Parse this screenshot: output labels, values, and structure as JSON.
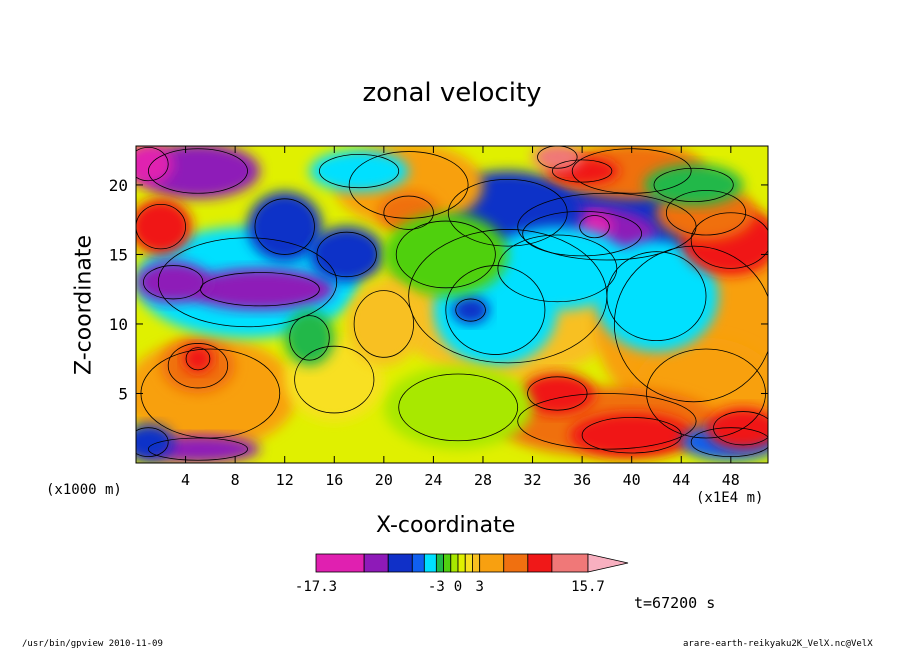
{
  "chart_data": {
    "type": "heatmap",
    "title": "zonal velocity",
    "xlabel": "X-coordinate",
    "ylabel": "Z-coordinate",
    "x_unit_label": "(x1E4 m)",
    "y_unit_label": "(x1000 m)",
    "xlim": [
      0,
      51
    ],
    "ylim": [
      0,
      22.8
    ],
    "x_ticks": [
      "4",
      "8",
      "12",
      "16",
      "20",
      "24",
      "28",
      "32",
      "36",
      "40",
      "44",
      "48"
    ],
    "y_ticks": [
      "5",
      "10",
      "15",
      "20"
    ],
    "colorbar": {
      "tick_labels": [
        "-17.3",
        "-3",
        "0",
        "3",
        "15.7"
      ],
      "levels": [
        -17.3,
        -14,
        -10,
        -7,
        -5,
        -3,
        -2,
        -1,
        0,
        1,
        2,
        3,
        5,
        7,
        11,
        15.7
      ],
      "colors": [
        "#e020b0",
        "#8e1ab8",
        "#1030c8",
        "#1060f0",
        "#00e0ff",
        "#20b848",
        "#50d010",
        "#a8e800",
        "#e0f000",
        "#f8e020",
        "#f8c020",
        "#f8a010",
        "#f07010",
        "#f01818",
        "#f07878"
      ],
      "extend": "max",
      "extend_color": "#f8b0c0"
    },
    "time_label": "t=67200 s",
    "heatmap_note": "contoured field of zonal velocity over x and z"
  },
  "footer": {
    "left": "/usr/bin/gpview   2010-11-09",
    "right": "arare-earth-reikyaku2K_VelX.nc@VelX"
  }
}
